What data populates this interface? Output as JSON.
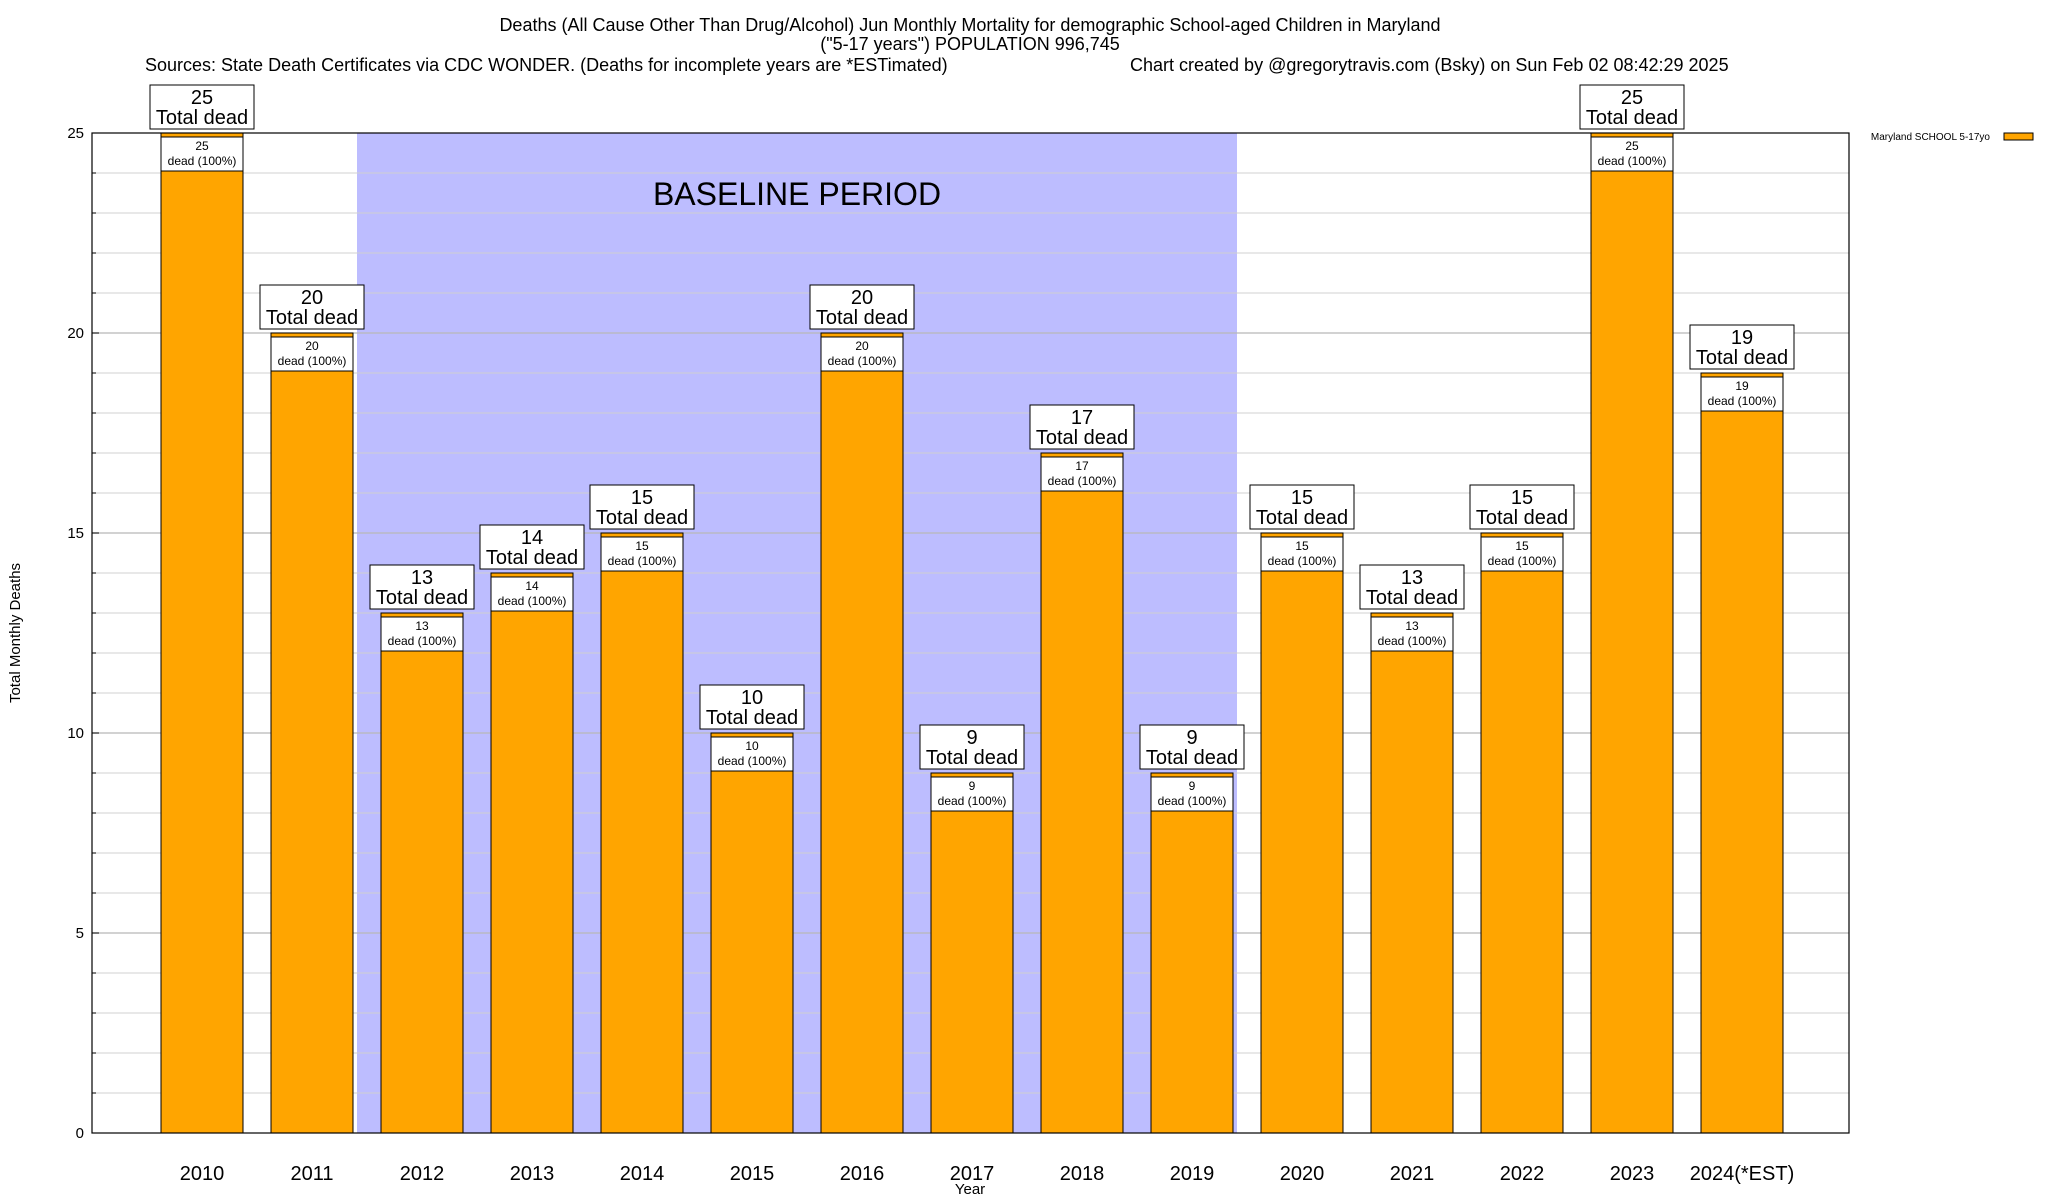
{
  "chart_data": {
    "type": "bar",
    "title_line1": "Deaths (All Cause Other Than Drug/Alcohol) Jun Monthly Mortality for demographic School-aged Children in Maryland",
    "title_line2": "(\"5-17 years\") POPULATION 996,745",
    "sources": "Sources: State Death Certificates via CDC WONDER. (Deaths for incomplete years are *ESTimated)",
    "credit": "Chart created by @gregorytravis.com (Bsky) on Sun Feb 02 08:42:29 2025",
    "xlabel": "Year",
    "ylabel": "Total Monthly Deaths",
    "ylim": [
      0,
      25
    ],
    "y_ticks": [
      0,
      5,
      10,
      15,
      20,
      25
    ],
    "grid": true,
    "legend_placement": "top-right",
    "series": [
      {
        "name": "Maryland SCHOOL 5-17yo",
        "color": "#FFA500"
      }
    ],
    "categories": [
      "2010",
      "2011",
      "2012",
      "2013",
      "2014",
      "2015",
      "2016",
      "2017",
      "2018",
      "2019",
      "2020",
      "2021",
      "2022",
      "2023",
      "2024(*EST)"
    ],
    "values": [
      25,
      20,
      13,
      14,
      15,
      10,
      20,
      9,
      17,
      9,
      15,
      13,
      15,
      25,
      19
    ],
    "total_label_suffix": "Total dead",
    "inner_label_suffix": "dead (100%)",
    "baseline": {
      "label": "BASELINE PERIOD",
      "from": "2012",
      "to": "2019",
      "color": "#BDBDFF"
    }
  }
}
